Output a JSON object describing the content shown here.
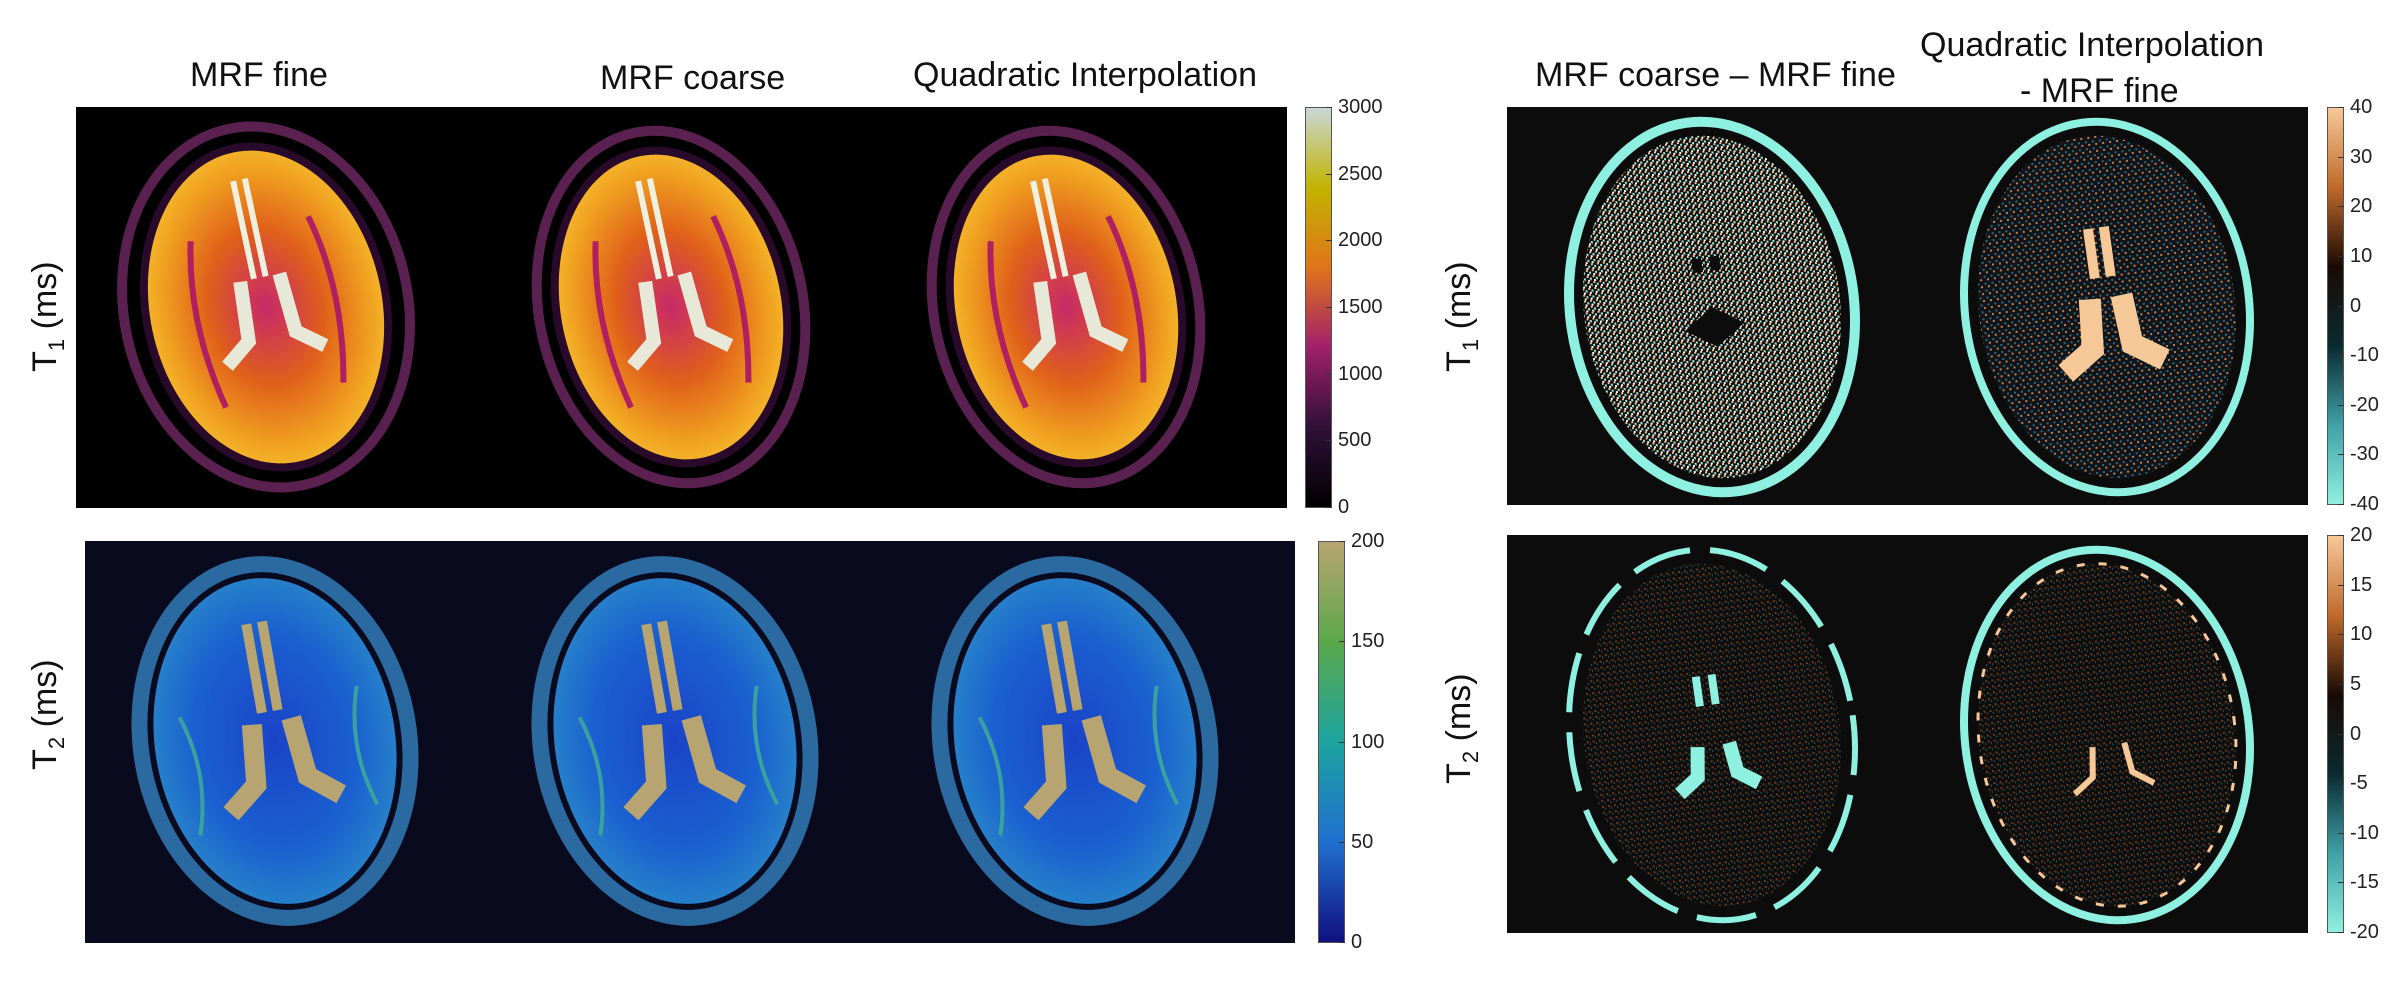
{
  "left_group": {
    "column_titles": [
      "MRF fine",
      "MRF coarse",
      "Quadratic Interpolation"
    ],
    "row_labels": [
      {
        "main": "T",
        "sub": "1",
        "unit": "(ms)"
      },
      {
        "main": "T",
        "sub": "2",
        "unit": "(ms)"
      }
    ],
    "colorbars": [
      {
        "ticks": [
          "3000",
          "2500",
          "2000",
          "1500",
          "1000",
          "500",
          "0"
        ],
        "colormap": [
          "#c8d8d6",
          "#c2b300",
          "#e0741a",
          "#a0206a",
          "#301038",
          "#000000"
        ]
      },
      {
        "ticks": [
          "200",
          "150",
          "100",
          "50",
          "0"
        ],
        "colormap": [
          "#b8a470",
          "#5aa84a",
          "#1ca4a0",
          "#2070d0",
          "#101080"
        ]
      }
    ]
  },
  "right_group": {
    "column_titles": [
      "MRF coarse – MRF fine",
      "Quadratic Interpolation",
      "- MRF fine"
    ],
    "row_labels": [
      {
        "main": "T",
        "sub": "1",
        "unit": "(ms)"
      },
      {
        "main": "T",
        "sub": "2",
        "unit": "(ms)"
      }
    ],
    "colorbars": [
      {
        "ticks": [
          "40",
          "30",
          "20",
          "10",
          "0",
          "-10",
          "-20",
          "-30",
          "-40"
        ],
        "colormap": [
          "#f6c898",
          "#c06a2a",
          "#1a0a04",
          "#0a2a30",
          "#3fa0a8",
          "#8ff0e0"
        ]
      },
      {
        "ticks": [
          "20",
          "15",
          "10",
          "5",
          "0",
          "-5",
          "-10",
          "-15",
          "-20"
        ],
        "colormap": [
          "#f6c898",
          "#c06a2a",
          "#1a0a04",
          "#0a2a30",
          "#3fa0a8",
          "#8ff0e0"
        ]
      }
    ]
  }
}
